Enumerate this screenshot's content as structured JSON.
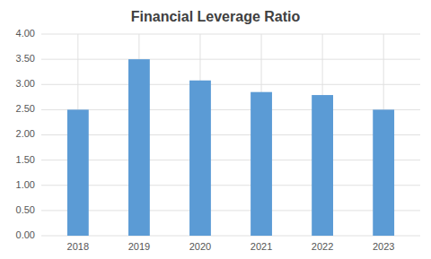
{
  "chart_data": {
    "type": "bar",
    "title": "Financial Leverage Ratio",
    "categories": [
      "2018",
      "2019",
      "2020",
      "2021",
      "2022",
      "2023"
    ],
    "values": [
      2.5,
      3.5,
      3.08,
      2.85,
      2.79,
      2.5
    ],
    "color": "#5B9BD5",
    "ylim": [
      0.0,
      4.0
    ],
    "yticks": [
      {
        "value": 0.0,
        "label": "0.00"
      },
      {
        "value": 0.5,
        "label": "0.50"
      },
      {
        "value": 1.0,
        "label": "1.00"
      },
      {
        "value": 1.5,
        "label": "1.50"
      },
      {
        "value": 2.0,
        "label": "2.00"
      },
      {
        "value": 2.5,
        "label": "2.50"
      },
      {
        "value": 3.0,
        "label": "3.00"
      },
      {
        "value": 3.5,
        "label": "3.50"
      },
      {
        "value": 4.0,
        "label": "4.00"
      }
    ],
    "grid": true
  }
}
